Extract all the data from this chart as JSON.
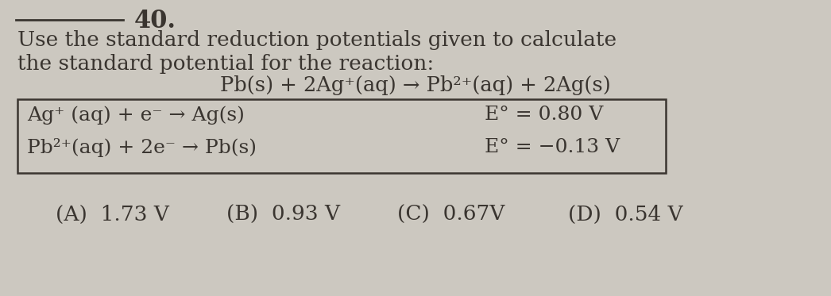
{
  "background_color": "#ccc8c0",
  "number_label": "40.",
  "line1": "Use the standard reduction potentials given to calculate",
  "line2": "the standard potential for the reaction:",
  "reaction": "Pb(s) + 2Ag⁺(aq) → Pb²⁺(aq) + 2Ag(s)",
  "table_row1_left": "Ag⁺ (aq) + e⁻ → Ag(s)",
  "table_row1_right": "E° = 0.80 V",
  "table_row2_left": "Pb²⁺(aq) + 2e⁻ → Pb(s)",
  "table_row2_right": "E° = −0.13 V",
  "choice_A": "(A)  1.73 V",
  "choice_B": "(B)  0.93 V",
  "choice_C": "(C)  0.67V",
  "choice_D": "(D)  0.54 V",
  "text_color": "#3a3530",
  "main_fontsize": 19,
  "number_fontsize": 22,
  "reaction_fontsize": 18.5,
  "table_fontsize": 18,
  "choices_fontsize": 19
}
